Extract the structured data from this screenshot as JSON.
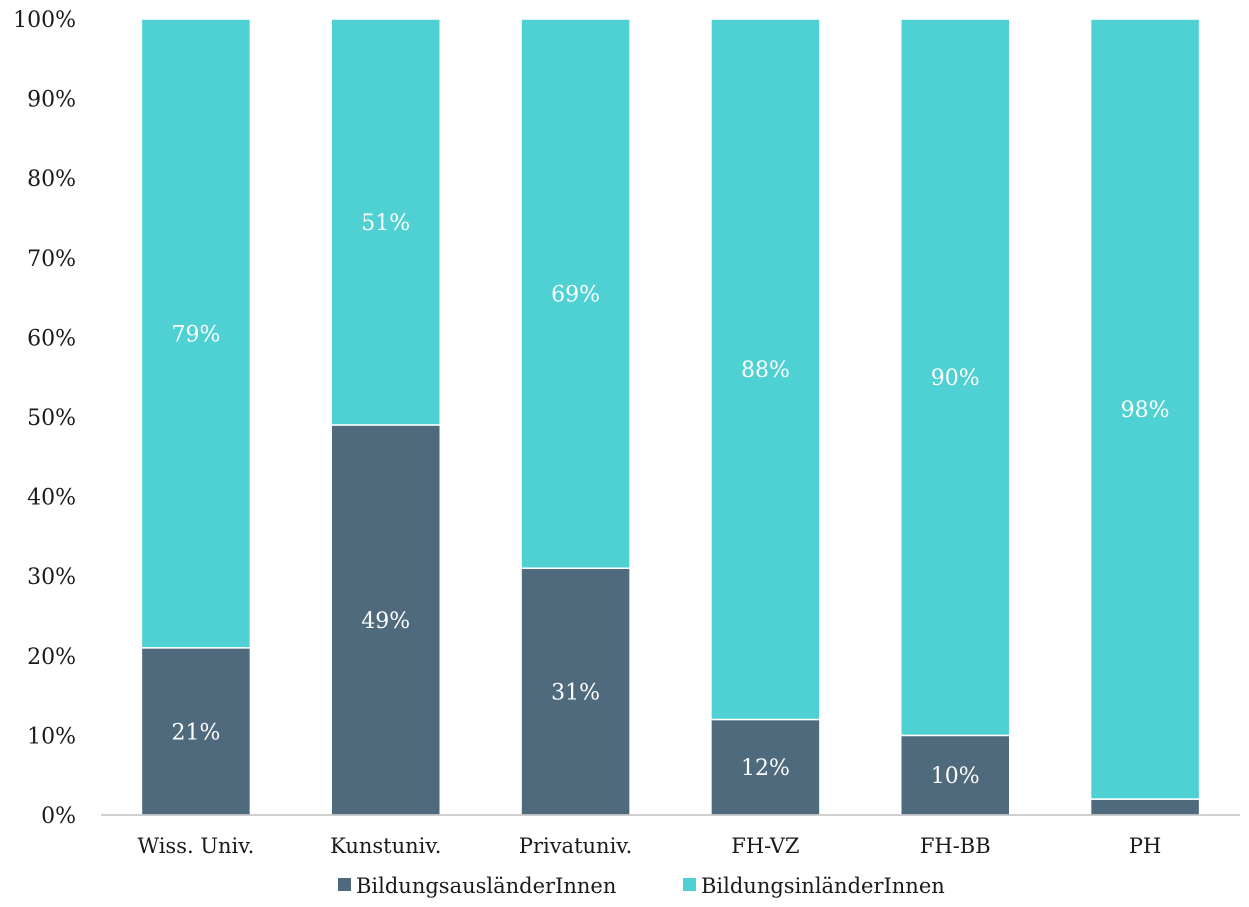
{
  "chart_data": {
    "type": "bar",
    "stacked": true,
    "categories": [
      "Wiss. Univ.",
      "Kunstuniv.",
      "Privatuniv.",
      "FH-VZ",
      "FH-BB",
      "PH"
    ],
    "series": [
      {
        "name": "BildungsausländerInnen",
        "color": "#4e6a7c",
        "values": [
          21,
          49,
          31,
          12,
          10,
          2
        ],
        "labels": [
          "21%",
          "49%",
          "31%",
          "12%",
          "10%",
          ""
        ]
      },
      {
        "name": "BildungsinländerInnen",
        "color": "#4fd0d3",
        "values": [
          79,
          51,
          69,
          88,
          90,
          98
        ],
        "labels": [
          "79%",
          "51%",
          "69%",
          "88%",
          "90%",
          "98%"
        ]
      }
    ],
    "ylim": [
      0,
      100
    ],
    "yticks": [
      "0%",
      "10%",
      "20%",
      "30%",
      "40%",
      "50%",
      "60%",
      "70%",
      "80%",
      "90%",
      "100%"
    ],
    "grid": false,
    "legend_position": "bottom"
  }
}
